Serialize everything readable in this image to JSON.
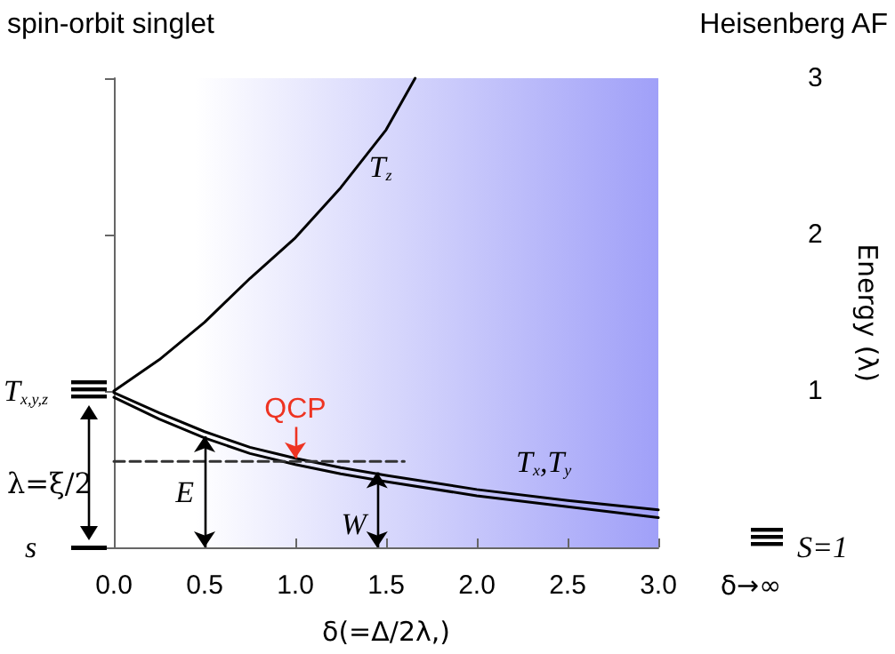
{
  "chart_data": {
    "type": "line",
    "xlabel": "δ(=Δ/2λ,)",
    "ylabel": "Energy (λ)",
    "xlim": [
      0,
      3
    ],
    "xticks": [
      {
        "value": 0,
        "label": "0.0"
      },
      {
        "value": 0.5,
        "label": "0.5"
      },
      {
        "value": 1,
        "label": "1.0"
      },
      {
        "value": 1.5,
        "label": "1.5"
      },
      {
        "value": 2,
        "label": "2.0"
      },
      {
        "value": 2.5,
        "label": "2.5"
      },
      {
        "value": 3,
        "label": "3.0"
      }
    ],
    "ylim": [
      0,
      3
    ],
    "yticks": [
      {
        "value": 0,
        "label": null
      },
      1,
      2,
      3
    ],
    "grid": false,
    "marker": "none",
    "series": [
      {
        "color": "#000000",
        "x": [
          0,
          0.25,
          0.5,
          0.75,
          1.0,
          1.25,
          1.5,
          1.66
        ],
        "values": [
          1,
          1.2,
          1.44,
          1.72,
          1.98,
          2.3,
          2.67,
          3
        ]
      },
      {
        "color": "#000000",
        "x": [
          0,
          0.25,
          0.5,
          0.75,
          1.0,
          1.25,
          1.5,
          2.0,
          2.5,
          3.0
        ],
        "values": [
          0.99,
          0.86,
          0.74,
          0.64,
          0.57,
          0.51,
          0.46,
          0.37,
          0.3,
          0.24
        ]
      },
      {
        "color": "#000000",
        "x": [
          0,
          0.25,
          0.5,
          0.75,
          1.0,
          1.25,
          1.5,
          2.0,
          2.5,
          3.0
        ],
        "values": [
          0.96,
          0.82,
          0.7,
          0.6,
          0.53,
          0.47,
          0.42,
          0.33,
          0.26,
          0.19
        ]
      },
      {
        "color": "#333333",
        "line_style": "dashed",
        "x": [
          0,
          1.6
        ],
        "values": [
          0.55,
          0.55
        ]
      }
    ],
    "annotations": [
      "spin-orbit singlet",
      "Heisenberg AF",
      "T$_{z}$",
      "T$_{x}$,T$_{y}$",
      {
        "text": "QCP",
        "x": 1.0,
        "y": 0.55
      },
      {
        "text": "E",
        "x": 0.5,
        "y": 0.71
      },
      {
        "text": "W",
        "x": 1.45,
        "y": 0.48
      },
      "T$_{x,y,z}$",
      "λ=ξ/2",
      "s",
      "S=1",
      "δ→∞"
    ]
  }
}
